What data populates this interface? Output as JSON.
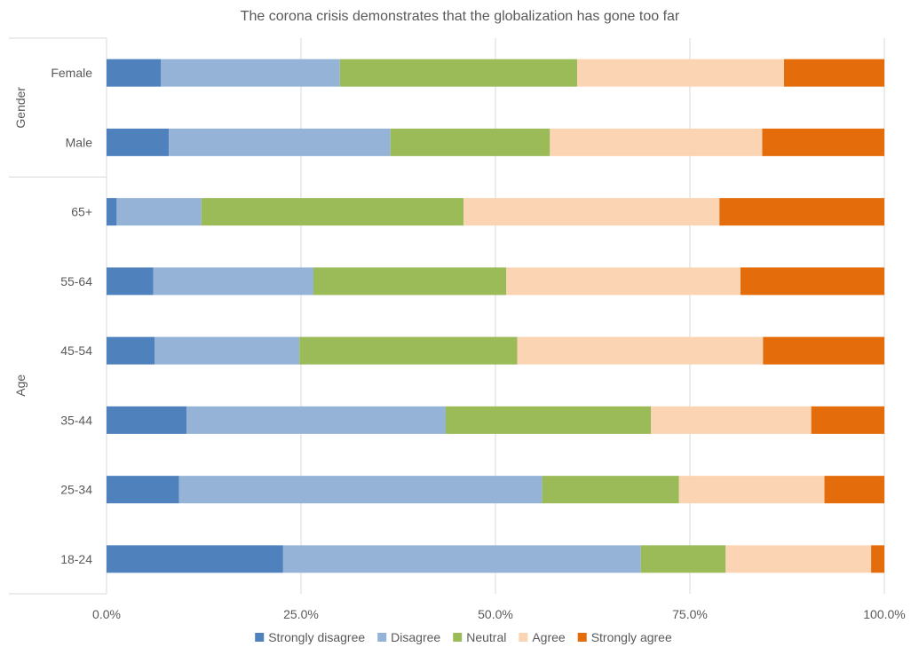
{
  "chart_data": {
    "type": "bar",
    "orientation": "horizontal",
    "stacked": "percent",
    "title": "The corona crisis demonstrates that the globalization has gone too far",
    "groups": [
      {
        "name": "Gender",
        "categories": [
          "Female",
          "Male"
        ]
      },
      {
        "name": "Age",
        "categories": [
          "65+",
          "55-64",
          "45-54",
          "35-44",
          "25-34",
          "18-24"
        ]
      }
    ],
    "categories": [
      "Female",
      "Male",
      "65+",
      "55-64",
      "45-54",
      "35-44",
      "25-34",
      "18-24"
    ],
    "series": [
      {
        "name": "Strongly disagree",
        "color": "#4f81bd",
        "values": [
          7.0,
          8.0,
          1.3,
          6.0,
          6.2,
          10.3,
          9.3,
          22.7
        ]
      },
      {
        "name": "Disagree",
        "color": "#95b3d7",
        "values": [
          23.0,
          28.5,
          10.9,
          20.6,
          18.6,
          33.3,
          46.7,
          46.0
        ]
      },
      {
        "name": "Neutral",
        "color": "#9bbb59",
        "values": [
          30.5,
          20.5,
          33.7,
          24.8,
          28.0,
          26.4,
          17.6,
          10.9
        ]
      },
      {
        "name": "Agree",
        "color": "#fbd4b4",
        "values": [
          26.6,
          27.3,
          32.9,
          30.1,
          31.6,
          20.6,
          18.7,
          18.7
        ]
      },
      {
        "name": "Strongly agree",
        "color": "#e46c0a",
        "values": [
          12.9,
          15.7,
          21.2,
          18.5,
          15.6,
          9.4,
          7.7,
          1.7
        ]
      }
    ],
    "x_ticks": [
      "0.0%",
      "25.0%",
      "50.0%",
      "75.0%",
      "100.0%"
    ],
    "xlim": [
      0,
      100
    ],
    "grid": true,
    "legend_position": "bottom"
  }
}
